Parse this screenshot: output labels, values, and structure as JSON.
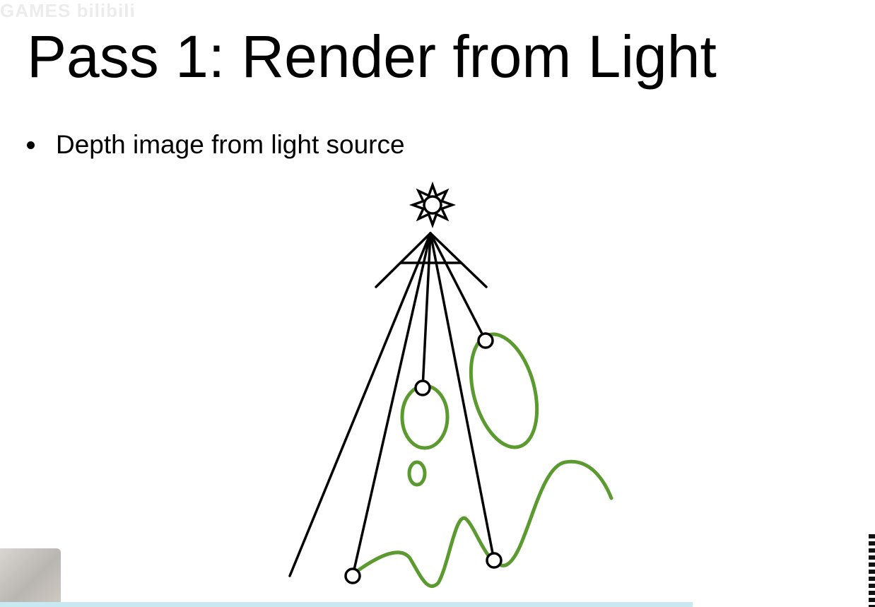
{
  "slide": {
    "title": "Pass 1: Render from Light",
    "bullets": [
      "Depth image from light source"
    ],
    "watermark": "GAMES  bilibili"
  },
  "diagram": {
    "icons": [
      "light-source-sun-icon"
    ],
    "colors": {
      "rays": "#000000",
      "objects": "#5a9a2e",
      "depth_points_fill": "#ffffff"
    }
  }
}
